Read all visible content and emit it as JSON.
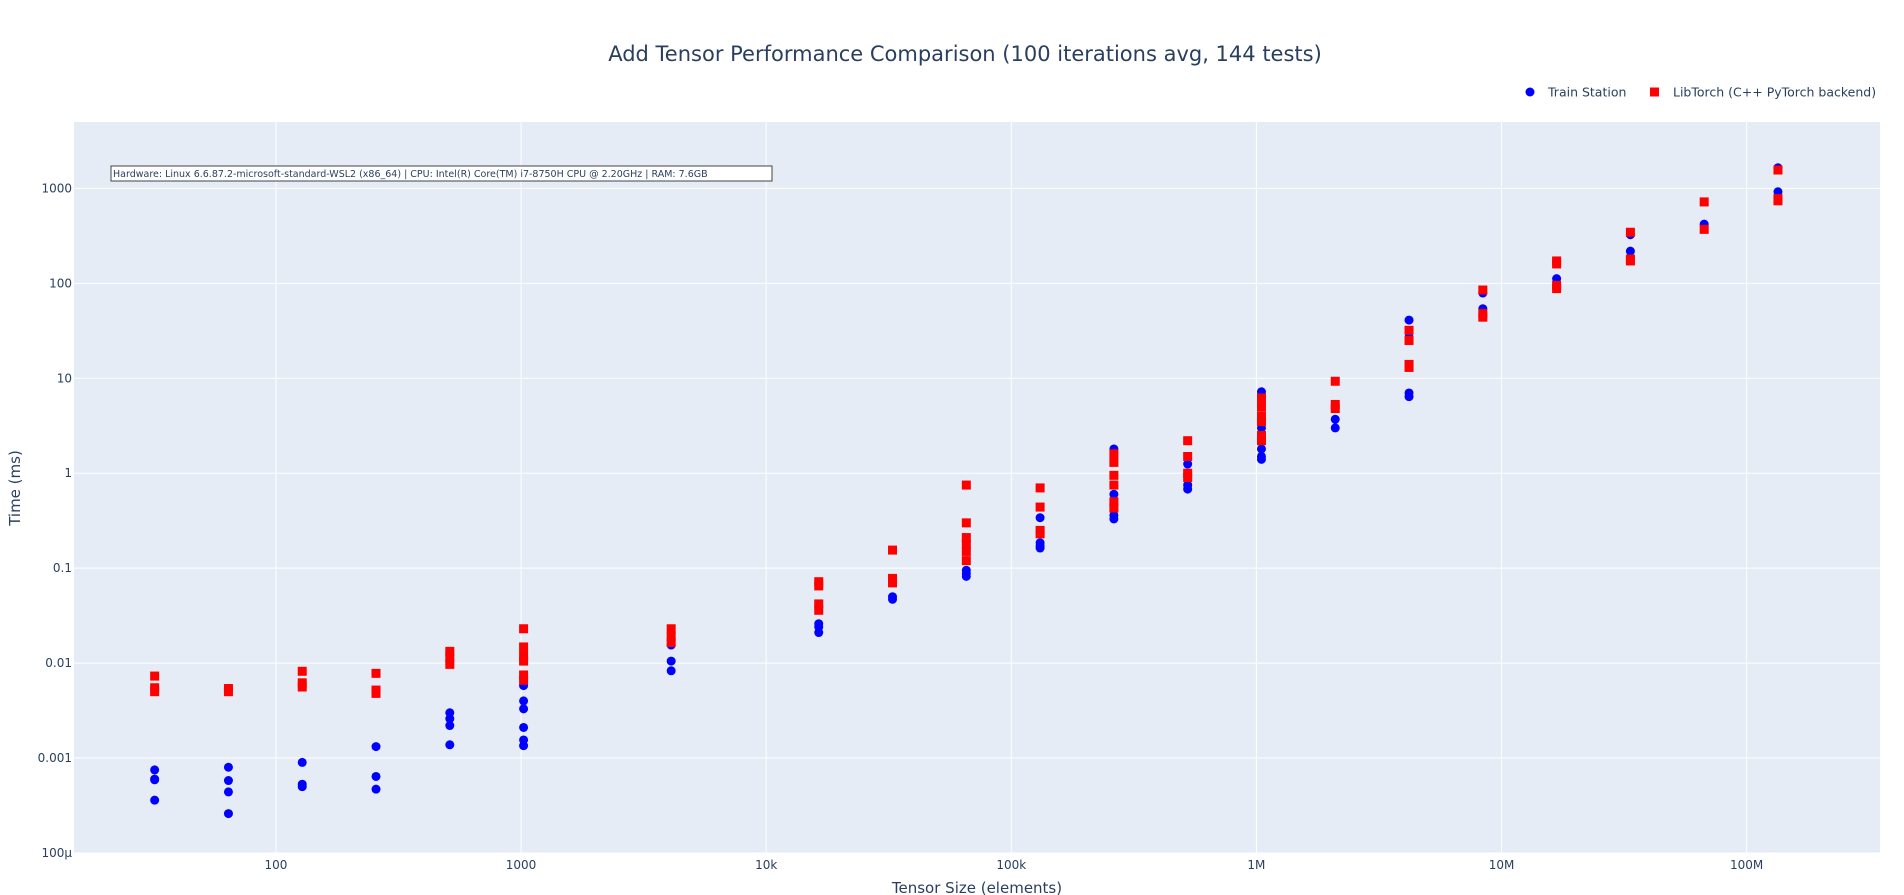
{
  "chart_data": {
    "type": "scatter",
    "title": "Add Tensor Performance Comparison (100 iterations avg, 144 tests)",
    "xlabel": "Tensor Size (elements)",
    "ylabel": "Time (ms)",
    "x_scale": "log",
    "y_scale": "log",
    "xlim": [
      15,
      350000000
    ],
    "ylim": [
      0.0001,
      5000
    ],
    "x_ticks": [
      {
        "value": 100,
        "label": "100"
      },
      {
        "value": 1000,
        "label": "1000"
      },
      {
        "value": 10000,
        "label": "10k"
      },
      {
        "value": 100000,
        "label": "100k"
      },
      {
        "value": 1000000,
        "label": "1M"
      },
      {
        "value": 10000000,
        "label": "10M"
      },
      {
        "value": 100000000,
        "label": "100M"
      }
    ],
    "y_ticks": [
      {
        "value": 0.0001,
        "label": "100μ"
      },
      {
        "value": 0.001,
        "label": "0.001"
      },
      {
        "value": 0.01,
        "label": "0.01"
      },
      {
        "value": 0.1,
        "label": "0.1"
      },
      {
        "value": 1,
        "label": "1"
      },
      {
        "value": 10,
        "label": "10"
      },
      {
        "value": 100,
        "label": "100"
      },
      {
        "value": 1000,
        "label": "1000"
      }
    ],
    "grid": true,
    "legend_position": "top-right",
    "annotation": "Hardware: Linux 6.6.87.2-microsoft-standard-WSL2 (x86_64) | CPU: Intel(R) Core(TM) i7-8750H CPU @ 2.20GHz | RAM: 7.6GB",
    "series": [
      {
        "name": "Train Station",
        "marker": "circle",
        "color": "#0000ff",
        "points": [
          [
            32,
            0.00075
          ],
          [
            32,
            0.0006
          ],
          [
            32,
            0.00059
          ],
          [
            32,
            0.00036
          ],
          [
            64,
            0.0008
          ],
          [
            64,
            0.00058
          ],
          [
            64,
            0.00044
          ],
          [
            64,
            0.00026
          ],
          [
            128,
            0.0009
          ],
          [
            128,
            0.00053
          ],
          [
            128,
            0.0005
          ],
          [
            256,
            0.00132
          ],
          [
            256,
            0.00064
          ],
          [
            256,
            0.00047
          ],
          [
            512,
            0.003
          ],
          [
            512,
            0.0026
          ],
          [
            512,
            0.0022
          ],
          [
            512,
            0.00138
          ],
          [
            1024,
            0.0058
          ],
          [
            1024,
            0.004
          ],
          [
            1024,
            0.0033
          ],
          [
            1024,
            0.0021
          ],
          [
            1024,
            0.00155
          ],
          [
            1024,
            0.00135
          ],
          [
            4096,
            0.0155
          ],
          [
            4096,
            0.0105
          ],
          [
            4096,
            0.0083
          ],
          [
            16384,
            0.026
          ],
          [
            16384,
            0.024
          ],
          [
            16384,
            0.021
          ],
          [
            32768,
            0.05
          ],
          [
            32768,
            0.047
          ],
          [
            65536,
            0.095
          ],
          [
            65536,
            0.088
          ],
          [
            65536,
            0.082
          ],
          [
            131072,
            0.34
          ],
          [
            131072,
            0.185
          ],
          [
            131072,
            0.172
          ],
          [
            131072,
            0.163
          ],
          [
            262144,
            1.8
          ],
          [
            262144,
            0.6
          ],
          [
            262144,
            0.36
          ],
          [
            262144,
            0.33
          ],
          [
            524288,
            1.25
          ],
          [
            524288,
            0.75
          ],
          [
            524288,
            0.68
          ],
          [
            1048576,
            7.2
          ],
          [
            1048576,
            3.0
          ],
          [
            1048576,
            1.8
          ],
          [
            1048576,
            1.5
          ],
          [
            1048576,
            1.4
          ],
          [
            2097152,
            3.7
          ],
          [
            2097152,
            3.0
          ],
          [
            4194304,
            41
          ],
          [
            4194304,
            27
          ],
          [
            4194304,
            7.0
          ],
          [
            4194304,
            6.4
          ],
          [
            8388608,
            79
          ],
          [
            8388608,
            54
          ],
          [
            16777216,
            112
          ],
          [
            33554432,
            325
          ],
          [
            33554432,
            218
          ],
          [
            67108864,
            420
          ],
          [
            134217728,
            1650
          ],
          [
            134217728,
            920
          ]
        ]
      },
      {
        "name": "LibTorch (C++ PyTorch backend)",
        "marker": "square",
        "color": "#ff0000",
        "points": [
          [
            32,
            0.0073
          ],
          [
            32,
            0.0055
          ],
          [
            32,
            0.005
          ],
          [
            64,
            0.0054
          ],
          [
            64,
            0.005
          ],
          [
            128,
            0.0082
          ],
          [
            128,
            0.0062
          ],
          [
            128,
            0.0056
          ],
          [
            256,
            0.0078
          ],
          [
            256,
            0.0052
          ],
          [
            256,
            0.0048
          ],
          [
            512,
            0.0133
          ],
          [
            512,
            0.0115
          ],
          [
            512,
            0.0097
          ],
          [
            1024,
            0.023
          ],
          [
            1024,
            0.0148
          ],
          [
            1024,
            0.012
          ],
          [
            1024,
            0.0105
          ],
          [
            1024,
            0.0075
          ],
          [
            1024,
            0.0066
          ],
          [
            4096,
            0.023
          ],
          [
            4096,
            0.019
          ],
          [
            4096,
            0.0165
          ],
          [
            16384,
            0.072
          ],
          [
            16384,
            0.065
          ],
          [
            16384,
            0.042
          ],
          [
            16384,
            0.036
          ],
          [
            32768,
            0.155
          ],
          [
            32768,
            0.078
          ],
          [
            32768,
            0.07
          ],
          [
            65536,
            0.75
          ],
          [
            65536,
            0.3
          ],
          [
            65536,
            0.21
          ],
          [
            65536,
            0.18
          ],
          [
            65536,
            0.15
          ],
          [
            65536,
            0.12
          ],
          [
            131072,
            0.7
          ],
          [
            131072,
            0.44
          ],
          [
            131072,
            0.25
          ],
          [
            131072,
            0.23
          ],
          [
            262144,
            1.6
          ],
          [
            262144,
            1.3
          ],
          [
            262144,
            0.95
          ],
          [
            262144,
            0.75
          ],
          [
            262144,
            0.5
          ],
          [
            262144,
            0.43
          ],
          [
            524288,
            2.2
          ],
          [
            524288,
            1.5
          ],
          [
            524288,
            1.0
          ],
          [
            524288,
            0.9
          ],
          [
            1048576,
            6.2
          ],
          [
            1048576,
            5.0
          ],
          [
            1048576,
            4.0
          ],
          [
            1048576,
            3.5
          ],
          [
            1048576,
            2.5
          ],
          [
            1048576,
            2.2
          ],
          [
            2097152,
            9.3
          ],
          [
            2097152,
            5.3
          ],
          [
            2097152,
            4.8
          ],
          [
            4194304,
            32
          ],
          [
            4194304,
            25
          ],
          [
            4194304,
            14
          ],
          [
            4194304,
            13
          ],
          [
            8388608,
            85
          ],
          [
            8388608,
            48
          ],
          [
            8388608,
            44
          ],
          [
            16777216,
            172
          ],
          [
            16777216,
            160
          ],
          [
            16777216,
            95
          ],
          [
            16777216,
            88
          ],
          [
            33554432,
            345
          ],
          [
            33554432,
            180
          ],
          [
            33554432,
            172
          ],
          [
            67108864,
            720
          ],
          [
            67108864,
            370
          ],
          [
            134217728,
            1560
          ],
          [
            134217728,
            780
          ],
          [
            134217728,
            740
          ]
        ]
      }
    ]
  },
  "colors": {
    "plot_background": "#e5ecf6",
    "grid": "#ffffff",
    "text": "#2a3f5f"
  }
}
